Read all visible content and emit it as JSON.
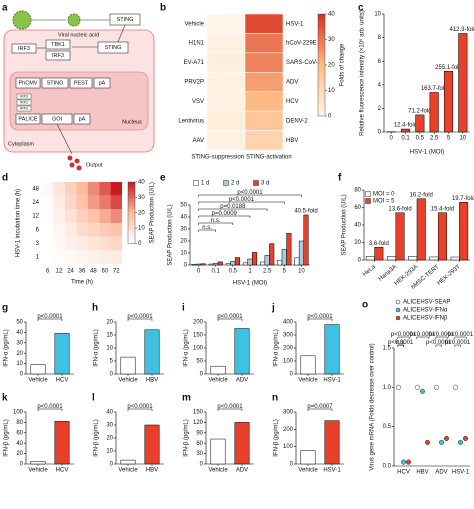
{
  "diagram": {
    "panel": "a",
    "viral_nucleic_acid": "Viral nucleic acid",
    "sting": "STING",
    "irf3": "IRF3",
    "tbk1": "TBK1",
    "promoter": "PhCMV",
    "pest": "PEST",
    "pa": "pA",
    "alice": "PALICE",
    "goi": "GOI",
    "nucleus": "Nucleus",
    "cytoplasm": "Cytoplasm",
    "output": "Output"
  },
  "chart_data": [
    {
      "panel": "b",
      "type": "heatmap",
      "rows_left": [
        "Vehicle",
        "H1N1",
        "EV-A71",
        "PRV2P",
        "VSV",
        "Lentivirus",
        "AAV"
      ],
      "rows_right": [
        "HSV-1",
        "hCoV-229E",
        "SARS-CoV-2",
        "ADV",
        "HCV",
        "DENV-2",
        "HBV"
      ],
      "columns": [
        "STING-suppression",
        "STING-activation"
      ],
      "values": [
        [
          1,
          36
        ],
        [
          2,
          30
        ],
        [
          3,
          28
        ],
        [
          2,
          24
        ],
        [
          2,
          20
        ],
        [
          3,
          16
        ],
        [
          2,
          12
        ]
      ],
      "zlim": [
        0,
        40
      ],
      "zticks": [
        0,
        10,
        20,
        30,
        40
      ],
      "colorbar_label": "Folds of change",
      "colors": [
        "#fff7ec",
        "#fdbb84",
        "#d7301f"
      ]
    },
    {
      "panel": "c",
      "type": "bar",
      "categories": [
        "0",
        "0.1",
        "0.5",
        "2.5",
        "5",
        "10"
      ],
      "values": [
        0.02,
        0.25,
        1.45,
        3.35,
        5.15,
        8.35
      ],
      "bar_labels": [
        null,
        "12.4-fold",
        "71.2-fold",
        "163.7-fold",
        "255.1-fold",
        "412.3-fold"
      ],
      "color": "#e8402a",
      "xlabel": "HSV-1 (MOI)",
      "ylabel": "Relative fluorescence intensity (×10⁶ arb. units)",
      "ylim": [
        0,
        10
      ],
      "yticks": [
        0,
        2,
        4,
        6,
        8,
        10
      ]
    },
    {
      "panel": "d",
      "type": "heatmap",
      "rows_left": [
        "48",
        "24",
        "12",
        "6",
        "3",
        "1"
      ],
      "columns": [
        "6",
        "12",
        "24",
        "36",
        "48",
        "60",
        "72"
      ],
      "values": [
        [
          2,
          8,
          14,
          20,
          26,
          32,
          40
        ],
        [
          1,
          6,
          12,
          18,
          24,
          28,
          34
        ],
        [
          1,
          4,
          9,
          14,
          18,
          22,
          26
        ],
        [
          0,
          3,
          6,
          10,
          13,
          16,
          18
        ],
        [
          0,
          2,
          4,
          6,
          8,
          10,
          12
        ],
        [
          0,
          1,
          2,
          3,
          4,
          5,
          6
        ]
      ],
      "xlabel": "Time (h)",
      "ylabel": "HSV-1 incubation time (h)",
      "zlim": [
        0,
        40
      ],
      "zticks": [
        0,
        10,
        20,
        30,
        40
      ],
      "colorbar_label": "SEAP Production (U/L)",
      "colors": [
        "#ffffff",
        "#fcbba1",
        "#cb181d"
      ]
    },
    {
      "panel": "e",
      "type": "bar",
      "categories": [
        "0",
        "0.1",
        "0.5",
        "1",
        "2.5",
        "5",
        "10"
      ],
      "series": [
        {
          "name": "1 d",
          "color": "#ffffff",
          "values": [
            0.5,
            0.8,
            1.2,
            1.8,
            2.5,
            4,
            6
          ]
        },
        {
          "name": "2 d",
          "color": "#a9cce3",
          "values": [
            0.8,
            1.5,
            3,
            5,
            8,
            13,
            20
          ]
        },
        {
          "name": "3 d",
          "color": "#e8402a",
          "values": [
            1.03,
            2.6,
            6.2,
            10.5,
            17.8,
            26.5,
            41.7
          ]
        }
      ],
      "bar_labels": [
        null,
        null,
        null,
        null,
        null,
        null,
        "40.5-fold"
      ],
      "annotations": [
        "p<0.0001",
        "p<0.0001",
        "p=0.0188",
        "p=0.0009",
        "n.s.",
        "n.s."
      ],
      "xlabel": "HSV-1 (MOI)",
      "ylabel": "SEAP Production (U/L)",
      "ylim": [
        0,
        50
      ],
      "yticks": [
        0,
        10,
        20,
        30,
        40,
        50
      ]
    },
    {
      "panel": "f",
      "type": "bar",
      "categories": [
        "HeLa",
        "Hana3A",
        "HEK-293A",
        "hMSC-TERT",
        "HEK-293T"
      ],
      "series": [
        {
          "name": "MOI = 0",
          "color": "#ffffff",
          "values": [
            4,
            4,
            4.3,
            3.5,
            3.4
          ]
        },
        {
          "name": "MOI = 5",
          "color": "#e8402a",
          "values": [
            14.5,
            54,
            70,
            54,
            66
          ]
        }
      ],
      "bar_labels": [
        "3.6-fold",
        "13.6-fold",
        "16.2-fold",
        "15.4-fold",
        "19.7-fold"
      ],
      "ylabel": "SEAP Production (U/L)",
      "ylim": [
        0,
        80
      ],
      "yticks": [
        0,
        20,
        40,
        60,
        80
      ]
    },
    {
      "panel": "g",
      "type": "bar",
      "categories": [
        "Vehicle",
        "HCV"
      ],
      "values": [
        9,
        39
      ],
      "colors": [
        "#ffffff",
        "#3fc1e3"
      ],
      "ylabel": "IFN-α (pg/mL)",
      "ylim": [
        0,
        50
      ],
      "yticks": [
        0,
        10,
        20,
        30,
        40,
        50
      ],
      "annotations": [
        "p<0.0001"
      ]
    },
    {
      "panel": "h",
      "type": "bar",
      "categories": [
        "Vehicle",
        "HBV"
      ],
      "values": [
        6.5,
        17
      ],
      "colors": [
        "#ffffff",
        "#3fc1e3"
      ],
      "ylabel": "IFN-α (pg/mL)",
      "ylim": [
        0,
        20
      ],
      "yticks": [
        0,
        5,
        10,
        15,
        20
      ],
      "annotations": [
        "p<0.0001"
      ]
    },
    {
      "panel": "i",
      "type": "bar",
      "categories": [
        "Vehicle",
        "ADV"
      ],
      "values": [
        30,
        175
      ],
      "colors": [
        "#ffffff",
        "#3fc1e3"
      ],
      "ylabel": "IFN-α (pg/mL)",
      "ylim": [
        0,
        200
      ],
      "yticks": [
        0,
        50,
        100,
        150,
        200
      ],
      "annotations": [
        "p<0.0001"
      ]
    },
    {
      "panel": "j",
      "type": "bar",
      "categories": [
        "Vehicle",
        "HSV-1"
      ],
      "values": [
        140,
        380
      ],
      "colors": [
        "#ffffff",
        "#3fc1e3"
      ],
      "ylabel": "IFN-α (pg/mL)",
      "ylim": [
        0,
        400
      ],
      "yticks": [
        0,
        100,
        200,
        300,
        400
      ],
      "annotations": [
        "p<0.0001"
      ]
    },
    {
      "panel": "k",
      "type": "bar",
      "categories": [
        "Vehicle",
        "HCV"
      ],
      "values": [
        5,
        82
      ],
      "colors": [
        "#ffffff",
        "#e8402a"
      ],
      "ylabel": "IFN-β (pg/mL)",
      "ylim": [
        0,
        100
      ],
      "yticks": [
        0,
        20,
        40,
        60,
        80,
        100
      ],
      "annotations": [
        "p<0.0001"
      ]
    },
    {
      "panel": "l",
      "type": "bar",
      "categories": [
        "Vehicle",
        "HBV"
      ],
      "values": [
        3,
        30
      ],
      "colors": [
        "#ffffff",
        "#e8402a"
      ],
      "ylabel": "IFN-β (pg/mL)",
      "ylim": [
        0,
        40
      ],
      "yticks": [
        0,
        10,
        20,
        30,
        40
      ],
      "annotations": [
        "p<0.0001"
      ]
    },
    {
      "panel": "m",
      "type": "bar",
      "categories": [
        "Vehicle",
        "ADV"
      ],
      "values": [
        72,
        120
      ],
      "colors": [
        "#ffffff",
        "#e8402a"
      ],
      "ylabel": "IFN-β (pg/mL)",
      "ylim": [
        0,
        150
      ],
      "yticks": [
        0,
        30,
        60,
        90,
        120,
        150
      ],
      "annotations": [
        "p<0.0001"
      ]
    },
    {
      "panel": "n",
      "type": "bar",
      "categories": [
        "Vehicle",
        "HSV-1"
      ],
      "values": [
        78,
        250
      ],
      "colors": [
        "#ffffff",
        "#e8402a"
      ],
      "ylabel": "IFN-β (pg/mL)",
      "ylim": [
        0,
        300
      ],
      "yticks": [
        0,
        100,
        200,
        300
      ],
      "annotations": [
        "p=0.0007"
      ]
    },
    {
      "panel": "o",
      "type": "dot",
      "categories": [
        "HCV",
        "HBV",
        "ADV",
        "HSV-1"
      ],
      "series": [
        {
          "name": "ALICEHSV-SEAP",
          "color": "#ffffff",
          "values": [
            1.0,
            1.0,
            1.0,
            1.0
          ]
        },
        {
          "name": "ALICEHSV-IFNα",
          "color": "#3fc1e3",
          "values": [
            0.05,
            0.95,
            0.3,
            0.3
          ]
        },
        {
          "name": "ALICEHSV-IFNβ",
          "color": "#e8402a",
          "values": [
            0.05,
            0.3,
            0.35,
            0.35
          ]
        }
      ],
      "annotations": [
        "p<0.0001",
        "p<0.0001",
        "n.s.",
        "p<0.0001",
        "p<0.0001",
        "p<0.0001",
        "p<0.0001",
        "p<0.0001"
      ],
      "ylabel": "Virus gene mRNA (Folds decrease over control)",
      "ylim": [
        0,
        1.5
      ],
      "yticks": [
        {
          "value": 0,
          "label": "0.0"
        },
        0.5,
        {
          "value": 1,
          "label": "1.0"
        },
        1.5
      ]
    }
  ]
}
